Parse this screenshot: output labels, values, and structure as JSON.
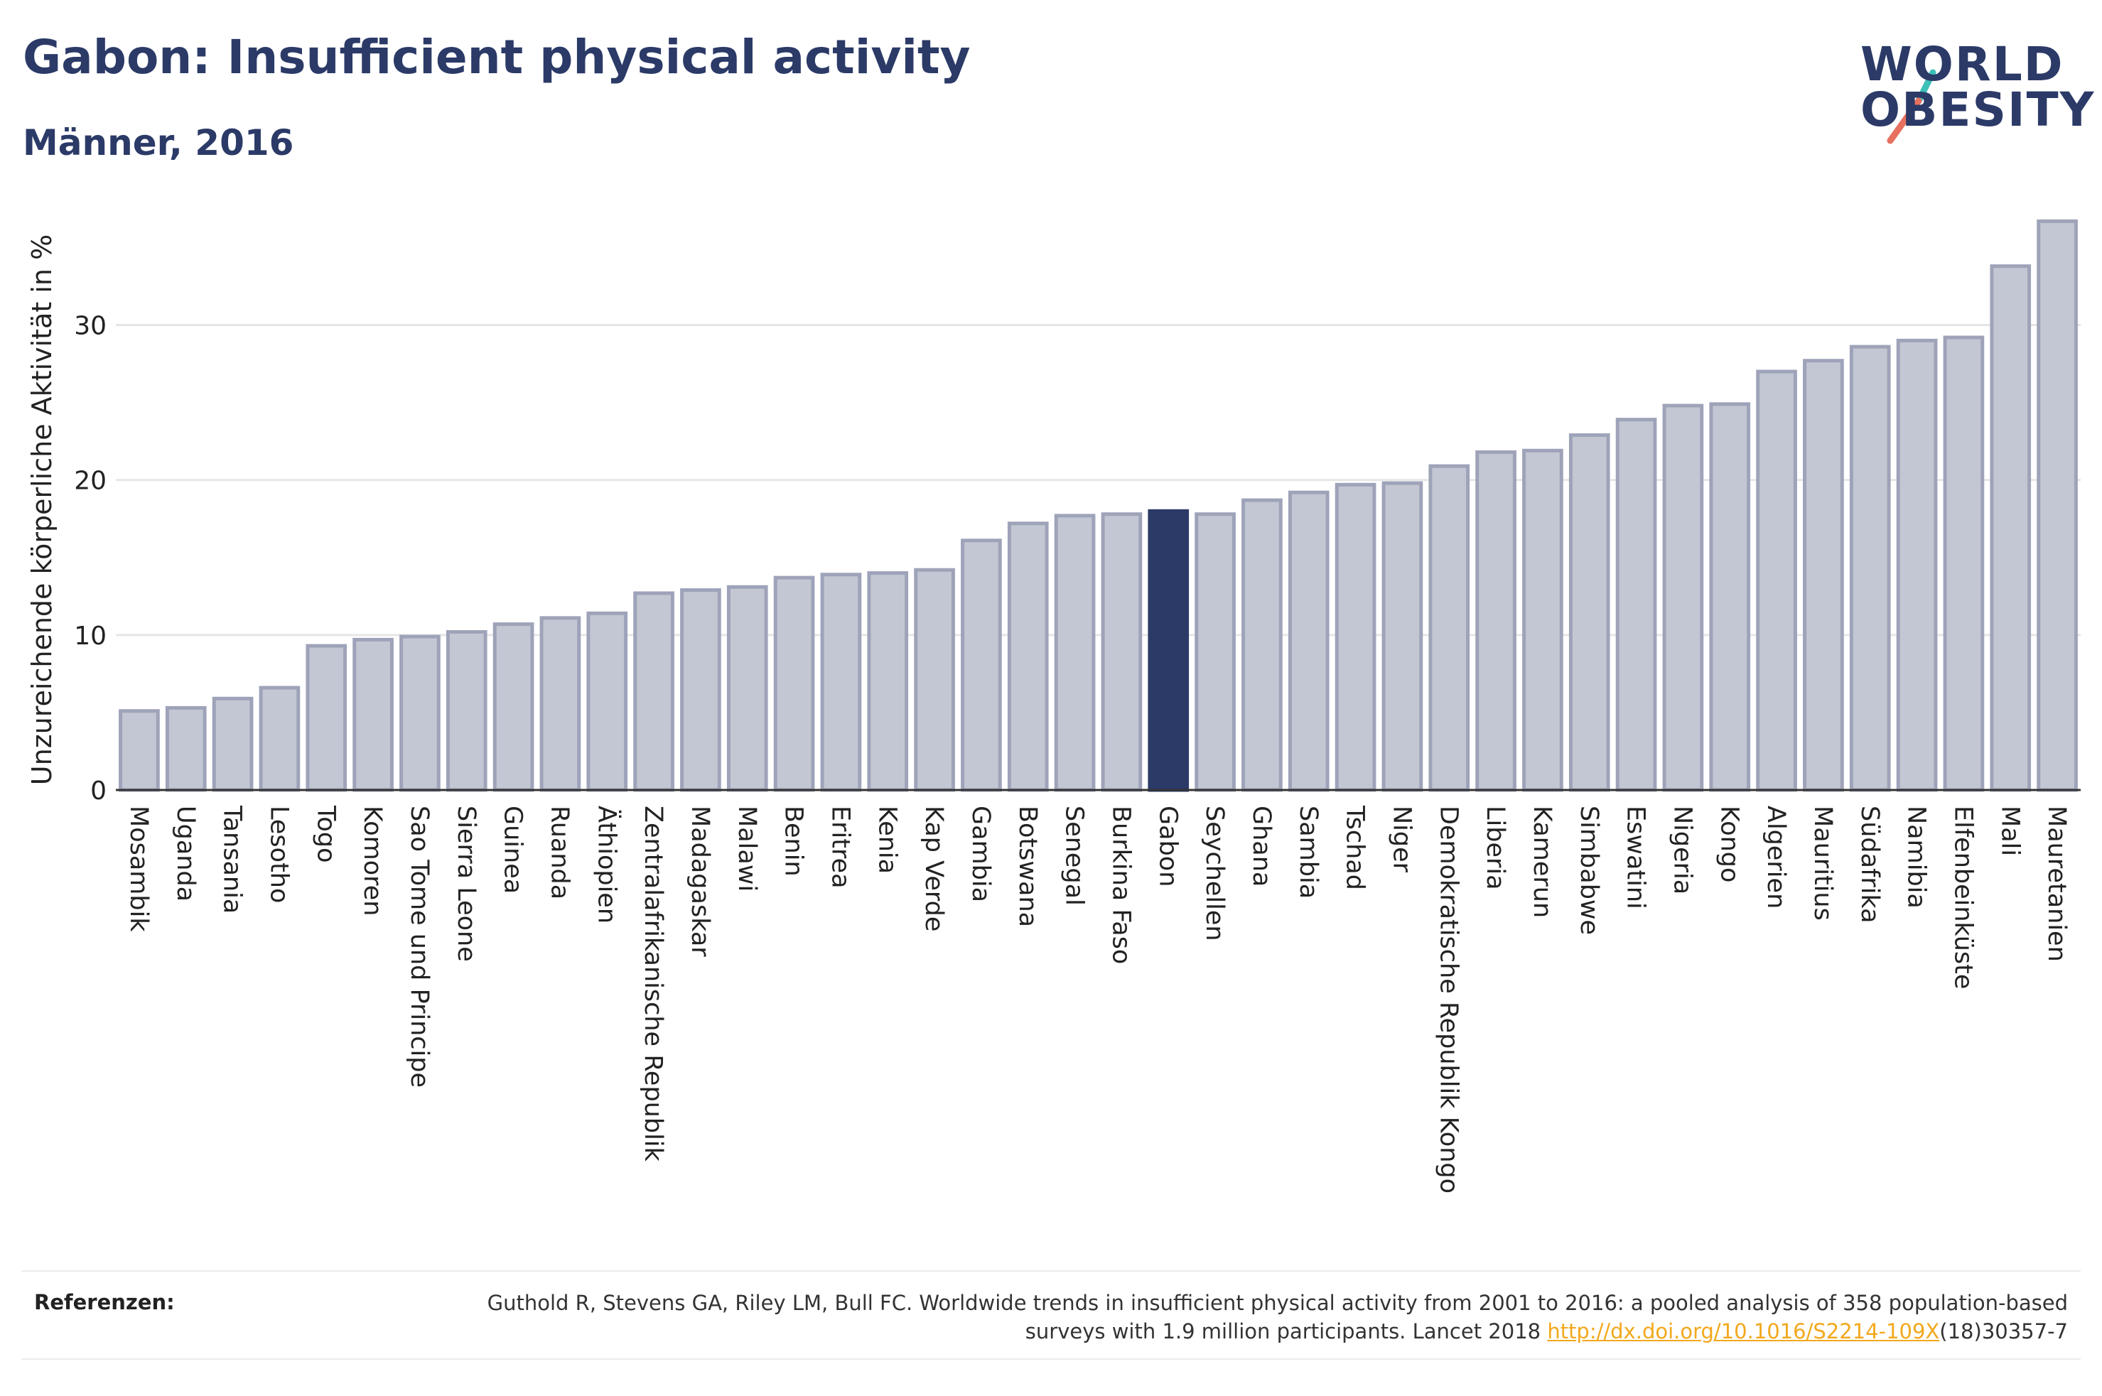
{
  "header": {
    "title": "Gabon: Insufficient physical activity",
    "subtitle": "Männer, 2016"
  },
  "logo": {
    "line1": "WORLD",
    "line2": "OBESITY",
    "colors": {
      "text": "#2b3a67",
      "slash_top": "#3cc0b8",
      "slash_bottom": "#e8705f"
    }
  },
  "colors": {
    "bar": "#c3c7d3",
    "bar_border": "#9ea3b9",
    "highlight": "#2b3a67",
    "grid": "#e6e6e6",
    "axis": "#333333"
  },
  "chart_data": {
    "type": "bar",
    "ylabel": "Unzureichende körperliche Aktivität in %",
    "xlabel": "",
    "ylim": [
      0,
      38
    ],
    "yticks": [
      0,
      10,
      20,
      30
    ],
    "grid": true,
    "highlight": "Gabon",
    "categories": [
      "Mosambik",
      "Uganda",
      "Tansania",
      "Lesotho",
      "Togo",
      "Komoren",
      "Sao Tome und Principe",
      "Sierra Leone",
      "Guinea",
      "Ruanda",
      "Äthiopien",
      "Zentralafrikanische Republik",
      "Madagaskar",
      "Malawi",
      "Benin",
      "Eritrea",
      "Kenia",
      "Kap Verde",
      "Gambia",
      "Botswana",
      "Senegal",
      "Burkina Faso",
      "Gabon",
      "Seychellen",
      "Ghana",
      "Sambia",
      "Tschad",
      "Niger",
      "Demokratische Republik Kongo",
      "Liberia",
      "Kamerun",
      "Simbabwe",
      "Eswatini",
      "Nigeria",
      "Kongo",
      "Algerien",
      "Mauritius",
      "Südafrika",
      "Namibia",
      "Elfenbeinküste",
      "Mali",
      "Mauretanien"
    ],
    "values": [
      5.1,
      5.3,
      5.9,
      6.6,
      9.3,
      9.7,
      9.9,
      10.2,
      10.7,
      11.1,
      11.4,
      12.7,
      12.9,
      13.1,
      13.7,
      13.9,
      14.0,
      14.2,
      16.1,
      17.2,
      17.7,
      17.8,
      18.0,
      17.8,
      18.7,
      19.2,
      19.7,
      19.8,
      20.9,
      21.8,
      21.9,
      22.9,
      23.9,
      24.8,
      24.9,
      27.0,
      27.7,
      28.6,
      29.0,
      29.2,
      33.8,
      36.7
    ]
  },
  "references": {
    "label": "Referenzen:",
    "text_part1": "Guthold R, Stevens GA, Riley LM, Bull FC. Worldwide trends in insufficient physical activity from 2001 to 2016: a pooled analysis of 358 population-based surveys with 1.9 million participants. Lancet 2018 ",
    "link": "http://dx.doi.org/10.1016/S2214-109X",
    "text_part2": "(18)30357-7"
  }
}
